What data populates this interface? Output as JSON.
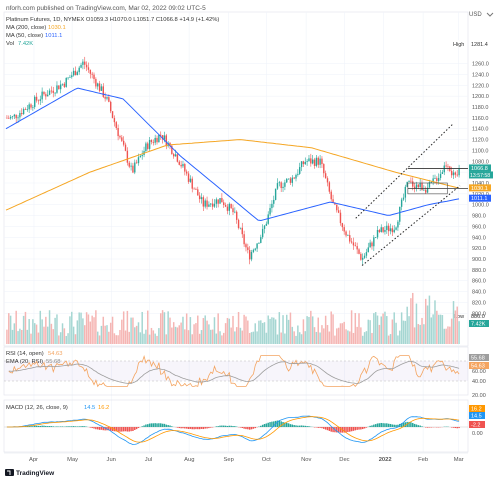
{
  "header": {
    "published": "nforh.com published on TradingView.com, Mar 02, 2022 09:02 UTC-5",
    "currency": "USD"
  },
  "legend": {
    "symbol_line": "Platinum Futures, 1D, NYMEX  O1059.3  H1070.0  L1051.7  C1066.8  +14.9 (+1.42%)",
    "ma200": "MA (200, close)",
    "ma200_value": "1030.1",
    "ma50": "MA (50, close)",
    "ma50_value": "1011.1",
    "vol": "Vol",
    "vol_value": "7.42K"
  },
  "price_axis": {
    "labels": [
      "1260.0",
      "1240.0",
      "1220.0",
      "1200.0",
      "1180.0",
      "1160.0",
      "1140.0",
      "1120.0",
      "1100.0",
      "1080.0",
      "1060.0",
      "1040.0",
      "1020.0",
      "1000.0",
      "980.0",
      "960.0",
      "940.0",
      "920.0",
      "900.0",
      "880.0",
      "860.0",
      "840.0",
      "820.0",
      "800.0"
    ],
    "high_label": "High",
    "high_value": "1281.4",
    "low_label": "Low",
    "low_value": "886.0",
    "tags": {
      "last": "1066.8",
      "countdown": "13:57:58",
      "ma200": "1030.1",
      "ma50": "1011.1",
      "vol": "7.42K"
    }
  },
  "rsi_panel": {
    "title": "RSI (14, open)",
    "title_value": "54.63",
    "ema_label": "EMA (20, RSI)",
    "ema_value": "55.68",
    "axis": [
      "60.00",
      "40.00",
      "20.00"
    ],
    "tags": {
      "rsi": "54.63",
      "ema": "55.68"
    }
  },
  "macd_panel": {
    "title": "MACD (12, 26, close, 9)",
    "macd_value": "14.5",
    "signal_value": "16.2",
    "axis": [
      "0.00"
    ],
    "tags": {
      "a": "16.2",
      "b": "14.5",
      "hist": "-2.2"
    }
  },
  "time_axis": [
    "Apr",
    "May",
    "Jun",
    "Jul",
    "Aug",
    "Sep",
    "Oct",
    "Nov",
    "Dec",
    "2022",
    "Feb",
    "Mar"
  ],
  "footer": {
    "brand": "TradingView"
  },
  "colors": {
    "up": "#26a69a",
    "down": "#ef5350",
    "ma200": "#f5a623",
    "ma50": "#2962ff",
    "vol_up": "#a5d6d2",
    "vol_down": "#f5b5b3",
    "rsi": "#f4a460",
    "ema": "#9e9e9e",
    "macd": "#2196f3",
    "signal": "#ff9800"
  },
  "chart_data": {
    "type": "candlestick",
    "title": "Platinum Futures, 1D, NYMEX",
    "y_range": [
      800,
      1290
    ],
    "date_range": [
      "2021-03-10",
      "2022-03-02"
    ],
    "ohlc_last": {
      "open": 1059.3,
      "high": 1070.0,
      "low": 1051.7,
      "close": 1066.8,
      "change": 14.9,
      "change_pct": 1.42
    },
    "key_points": [
      {
        "date": "2021-03-15",
        "price": 1160
      },
      {
        "date": "2021-04-07",
        "price": 1200
      },
      {
        "date": "2021-04-25",
        "price": 1225
      },
      {
        "date": "2021-05-10",
        "price": 1262
      },
      {
        "date": "2021-05-28",
        "price": 1195
      },
      {
        "date": "2021-06-17",
        "price": 1060
      },
      {
        "date": "2021-06-29",
        "price": 1110
      },
      {
        "date": "2021-07-10",
        "price": 1130
      },
      {
        "date": "2021-07-22",
        "price": 1090
      },
      {
        "date": "2021-08-12",
        "price": 1000
      },
      {
        "date": "2021-08-26",
        "price": 1010
      },
      {
        "date": "2021-09-05",
        "price": 985
      },
      {
        "date": "2021-09-17",
        "price": 905
      },
      {
        "date": "2021-09-28",
        "price": 950
      },
      {
        "date": "2021-10-10",
        "price": 1035
      },
      {
        "date": "2021-10-22",
        "price": 1050
      },
      {
        "date": "2021-10-31",
        "price": 1080
      },
      {
        "date": "2021-11-12",
        "price": 1080
      },
      {
        "date": "2021-11-22",
        "price": 1000
      },
      {
        "date": "2021-12-03",
        "price": 945
      },
      {
        "date": "2021-12-15",
        "price": 900
      },
      {
        "date": "2021-12-28",
        "price": 950
      },
      {
        "date": "2022-01-10",
        "price": 960
      },
      {
        "date": "2022-01-20",
        "price": 1040
      },
      {
        "date": "2022-02-05",
        "price": 1030
      },
      {
        "date": "2022-02-15",
        "price": 1060
      },
      {
        "date": "2022-02-20",
        "price": 1080
      },
      {
        "date": "2022-02-26",
        "price": 1045
      },
      {
        "date": "2022-03-02",
        "price": 1066.8
      }
    ],
    "ma200_points": [
      {
        "date": "2021-03-10",
        "price": 990
      },
      {
        "date": "2021-05-15",
        "price": 1060
      },
      {
        "date": "2021-07-15",
        "price": 1110
      },
      {
        "date": "2021-09-10",
        "price": 1120
      },
      {
        "date": "2021-11-05",
        "price": 1105
      },
      {
        "date": "2022-01-10",
        "price": 1060
      },
      {
        "date": "2022-03-02",
        "price": 1030.1
      }
    ],
    "ma50_points": [
      {
        "date": "2021-03-10",
        "price": 1140
      },
      {
        "date": "2021-05-05",
        "price": 1215
      },
      {
        "date": "2021-06-10",
        "price": 1195
      },
      {
        "date": "2021-07-25",
        "price": 1090
      },
      {
        "date": "2021-09-25",
        "price": 970
      },
      {
        "date": "2021-11-20",
        "price": 1005
      },
      {
        "date": "2022-01-05",
        "price": 980
      },
      {
        "date": "2022-02-05",
        "price": 1000
      },
      {
        "date": "2022-03-02",
        "price": 1011.1
      }
    ],
    "channel": {
      "upper": [
        {
          "date": "2021-12-10",
          "price": 975
        },
        {
          "date": "2022-02-25",
          "price": 1150
        }
      ],
      "lower": [
        {
          "date": "2021-12-15",
          "price": 888
        },
        {
          "date": "2022-03-02",
          "price": 1035
        }
      ]
    },
    "horizontal_lines": [
      1066.8,
      1030.1
    ],
    "rsi": {
      "range": [
        0,
        100
      ],
      "last": 54.63,
      "ema_last": 55.68
    },
    "macd": {
      "last_macd": 14.5,
      "last_signal": 16.2,
      "last_hist": -2.2
    }
  }
}
